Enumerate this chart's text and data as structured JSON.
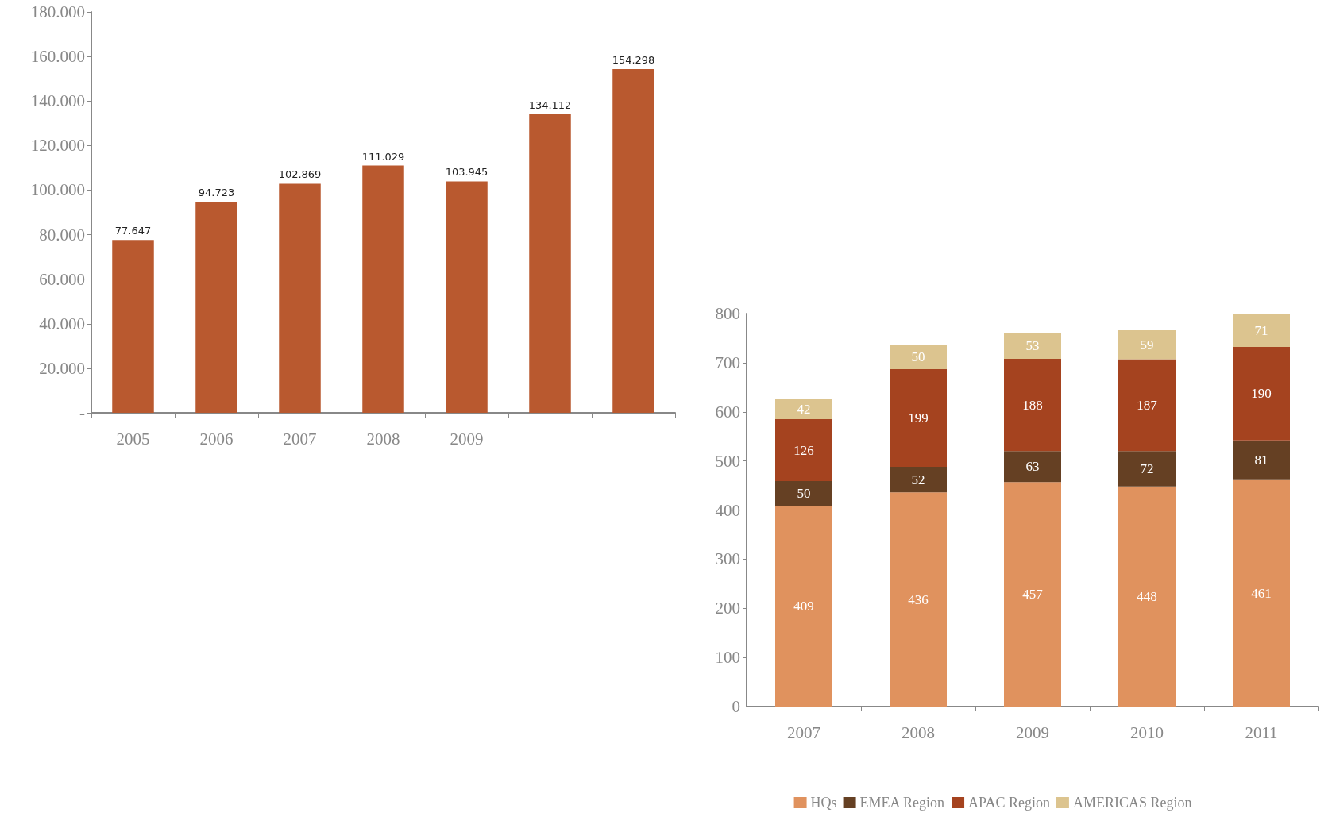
{
  "chart_data": [
    {
      "type": "bar",
      "categories": [
        "2005",
        "2006",
        "2007",
        "2008",
        "2009",
        null,
        null
      ],
      "values": [
        77647,
        94723,
        102869,
        111029,
        103945,
        134112,
        154298
      ],
      "value_labels": [
        "77.647",
        "94.723",
        "102.869",
        "111.029",
        "103.945",
        "134.112",
        "154.298"
      ],
      "color": "#b9592f",
      "ylim": [
        0,
        180000
      ],
      "yticks": [
        {
          "value": 0,
          "label": "-"
        },
        {
          "value": 20000,
          "label": "20.000"
        },
        {
          "value": 40000,
          "label": "40.000"
        },
        {
          "value": 60000,
          "label": "60.000"
        },
        {
          "value": 80000,
          "label": "80.000"
        },
        {
          "value": 100000,
          "label": "100.000"
        },
        {
          "value": 120000,
          "label": "120.000"
        },
        {
          "value": 140000,
          "label": "140.000"
        },
        {
          "value": 160000,
          "label": "160.000"
        },
        {
          "value": 180000,
          "label": "180.000"
        }
      ],
      "grid": false
    },
    {
      "type": "bar",
      "stacked": true,
      "categories": [
        "2007",
        "2008",
        "2009",
        "2010",
        "2011"
      ],
      "series": [
        {
          "name": "HQs",
          "color": "#e0925e",
          "values": [
            409,
            436,
            457,
            448,
            461
          ]
        },
        {
          "name": "EMEA Region",
          "color": "#654023",
          "values": [
            50,
            52,
            63,
            72,
            81
          ]
        },
        {
          "name": "APAC Region",
          "color": "#a5431f",
          "values": [
            126,
            199,
            188,
            187,
            190
          ]
        },
        {
          "name": "AMERICAS Region",
          "color": "#dcc48f",
          "values": [
            42,
            50,
            53,
            59,
            71
          ]
        }
      ],
      "data_labels": true,
      "ylim": [
        0,
        800
      ],
      "yticks": [
        0,
        100,
        200,
        300,
        400,
        500,
        600,
        700,
        800
      ],
      "grid": false,
      "legend": "bottom"
    }
  ]
}
